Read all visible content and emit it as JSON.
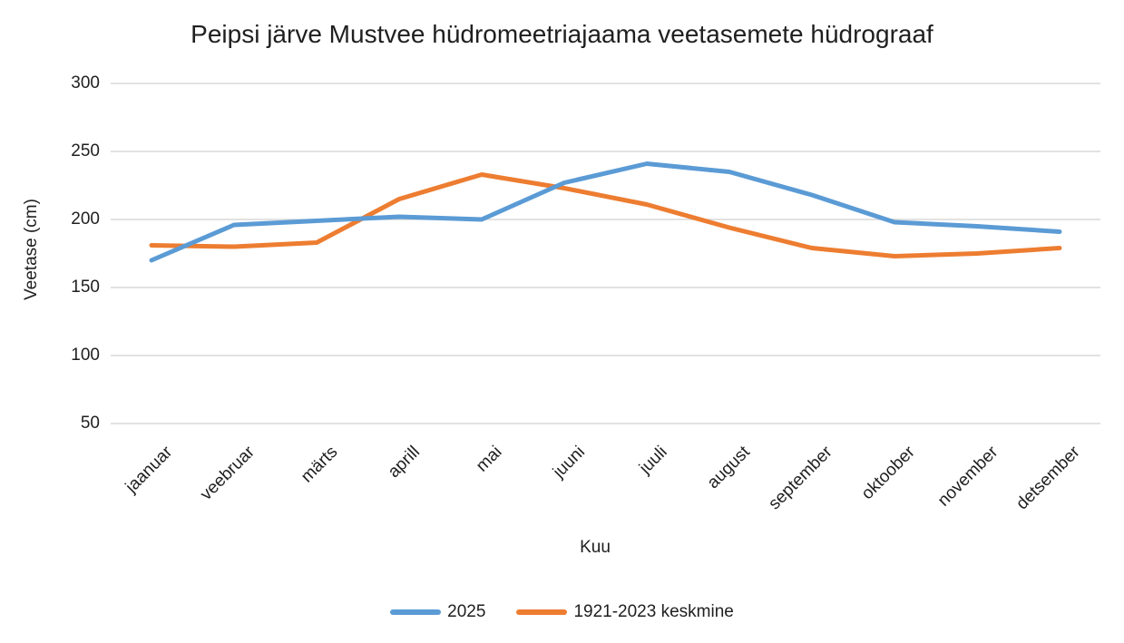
{
  "title": "Peipsi järve Mustvee hüdromeetriajaama veetasemete hüdrograaf",
  "chart_data": {
    "type": "line",
    "title": "Peipsi järve Mustvee hüdromeetriajaama veetasemete hüdrograaf",
    "xlabel": "Kuu",
    "ylabel": "Veetase (cm)",
    "categories": [
      "jaanuar",
      "veebruar",
      "märts",
      "aprill",
      "mai",
      "juuni",
      "juuli",
      "august",
      "september",
      "oktoober",
      "november",
      "detsember"
    ],
    "series": [
      {
        "name": "1921-2023 keskmine",
        "color": "#ED7D31",
        "values": [
          181,
          180,
          183,
          215,
          233,
          223,
          211,
          194,
          179,
          173,
          175,
          179
        ]
      },
      {
        "name": "2025",
        "color": "#5B9BD5",
        "values": [
          170,
          196,
          199,
          202,
          200,
          227,
          241,
          235,
          218,
          198,
          195,
          191
        ]
      }
    ],
    "legend_order": [
      "2025",
      "1921-2023 keskmine"
    ],
    "legend_position": "bottom",
    "ylim": [
      50,
      300
    ],
    "yticks": [
      300,
      250,
      200,
      150,
      100,
      50
    ],
    "grid": true,
    "gridline_color": "#D9D9D9",
    "text_color": "#1f1f1f",
    "background_color": "#ffffff"
  }
}
